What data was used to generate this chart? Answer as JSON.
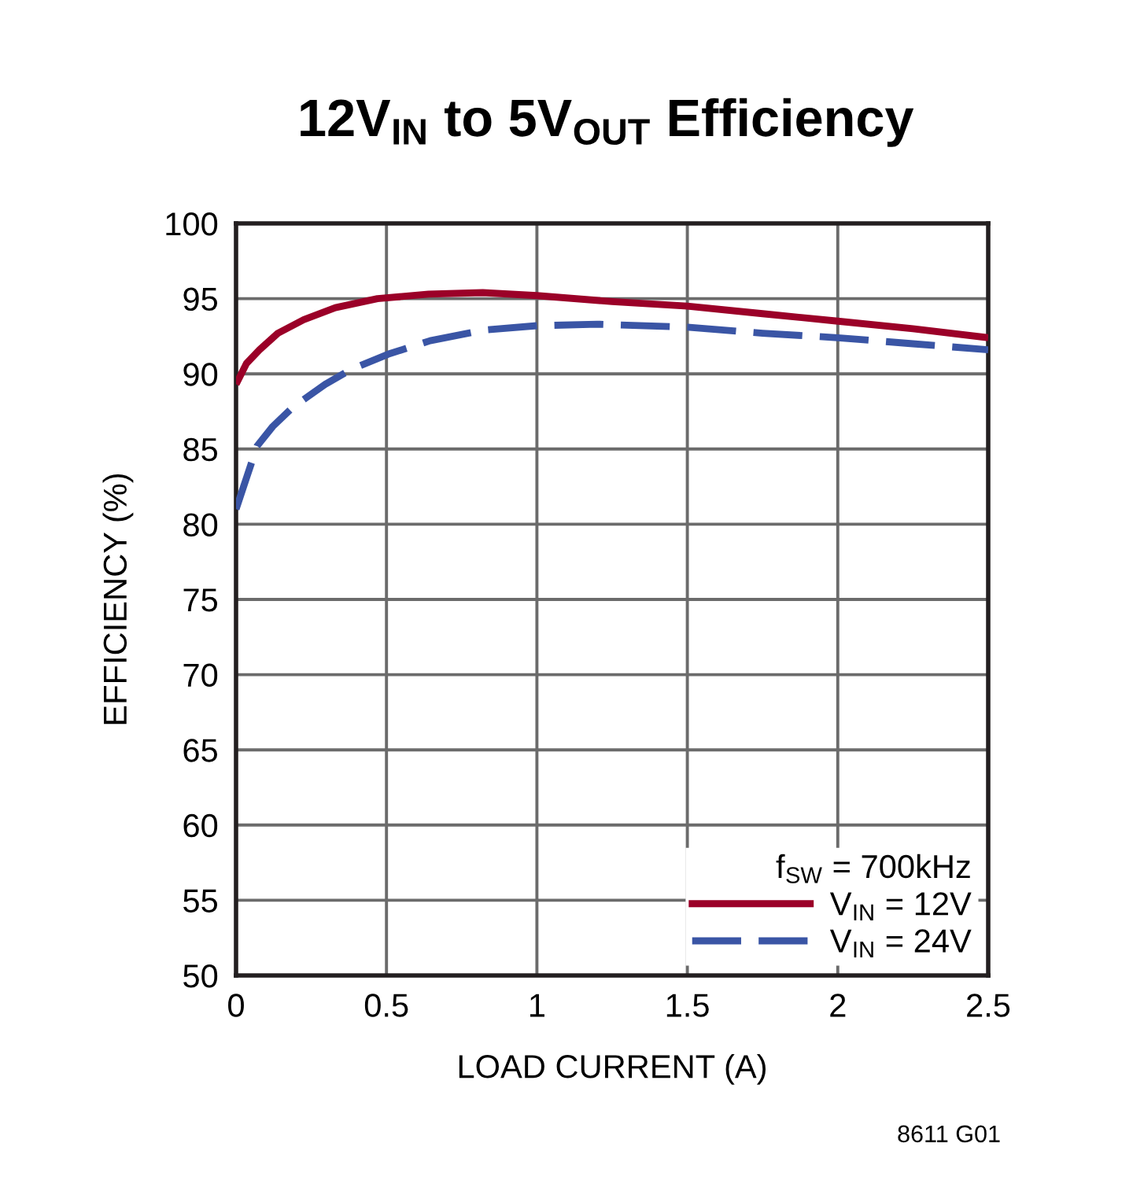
{
  "chart_data": {
    "type": "line",
    "title": "12V$_{IN}$ to 5V$_{OUT}$ Efficiency",
    "xlabel": "LOAD CURRENT (A)",
    "ylabel": "EFFICIENCY (%)",
    "legend_title": "f$_{SW}$ = 700kHz",
    "annotations": [
      "8611 G01"
    ],
    "xlim": [
      0,
      2.5
    ],
    "ylim": [
      50,
      100
    ],
    "xticks": [
      0,
      0.5,
      1,
      1.5,
      2,
      2.5
    ],
    "yticks": [
      50,
      55,
      60,
      65,
      70,
      75,
      80,
      85,
      90,
      95,
      100
    ],
    "grid": true,
    "legend": "bottom right",
    "marker": "none",
    "series": [
      {
        "name": "V$_{IN}$ = 12V",
        "color": "#9b0028",
        "line_style": "solid",
        "x": [
          0,
          0.035,
          0.078,
          0.139,
          0.225,
          0.33,
          0.47,
          0.64,
          0.82,
          1.0,
          1.25,
          1.5,
          1.75,
          2.0,
          2.25,
          2.5
        ],
        "values": [
          89.3,
          90.7,
          91.6,
          92.7,
          93.6,
          94.4,
          95.0,
          95.3,
          95.4,
          95.2,
          94.8,
          94.5,
          94.0,
          93.5,
          93.0,
          92.4
        ]
      },
      {
        "name": "V$_{IN}$ = 24V",
        "color": "#3a55a5",
        "line_style": "dashed",
        "x": [
          0,
          0.035,
          0.07,
          0.122,
          0.19,
          0.296,
          0.383,
          0.505,
          0.645,
          0.82,
          1.0,
          1.2,
          1.5,
          1.75,
          2.0,
          2.25,
          2.5
        ],
        "values": [
          81.0,
          83.1,
          85.2,
          86.5,
          87.8,
          89.3,
          90.3,
          91.3,
          92.2,
          92.9,
          93.2,
          93.3,
          93.1,
          92.7,
          92.4,
          92.0,
          91.6
        ]
      }
    ]
  }
}
